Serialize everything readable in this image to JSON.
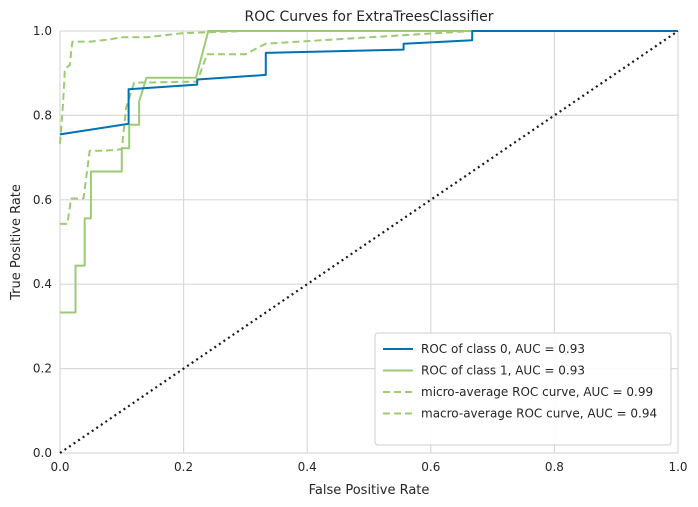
{
  "chart_data": {
    "type": "line",
    "title": "ROC Curves for ExtraTreesClassifier",
    "xlabel": "False Positive Rate",
    "ylabel": "True Positive Rate",
    "xlim": [
      0,
      1
    ],
    "ylim": [
      0,
      1
    ],
    "xticks": [
      "0.0",
      "0.2",
      "0.4",
      "0.6",
      "0.8",
      "1.0"
    ],
    "yticks": [
      "0.0",
      "0.2",
      "0.4",
      "0.6",
      "0.8",
      "1.0"
    ],
    "grid": true,
    "legend_position": "lower-right",
    "series": [
      {
        "name": "ROC of class 0, AUC = 0.93",
        "color": "#0072b2",
        "dash": "solid",
        "points": [
          [
            0,
            0.755
          ],
          [
            0.111,
            0.78
          ],
          [
            0.111,
            0.862
          ],
          [
            0.222,
            0.873
          ],
          [
            0.222,
            0.885
          ],
          [
            0.333,
            0.896
          ],
          [
            0.333,
            0.948
          ],
          [
            0.556,
            0.956
          ],
          [
            0.556,
            0.97
          ],
          [
            0.667,
            0.978
          ],
          [
            0.667,
            1.0
          ],
          [
            1.0,
            1.0
          ]
        ]
      },
      {
        "name": "ROC of class 1, AUC = 0.93",
        "color": "#9ccb74",
        "dash": "solid",
        "points": [
          [
            0,
            0.333
          ],
          [
            0.025,
            0.333
          ],
          [
            0.025,
            0.444
          ],
          [
            0.04,
            0.444
          ],
          [
            0.04,
            0.556
          ],
          [
            0.05,
            0.556
          ],
          [
            0.05,
            0.667
          ],
          [
            0.1,
            0.667
          ],
          [
            0.1,
            0.722
          ],
          [
            0.112,
            0.722
          ],
          [
            0.112,
            0.778
          ],
          [
            0.128,
            0.778
          ],
          [
            0.128,
            0.833
          ],
          [
            0.14,
            0.889
          ],
          [
            0.22,
            0.889
          ],
          [
            0.24,
            1.0
          ],
          [
            1.0,
            1.0
          ]
        ]
      },
      {
        "name": "micro-average ROC curve, AUC = 0.99",
        "color": "#9ccb74",
        "dash": "dashed",
        "points": [
          [
            0,
            0.733
          ],
          [
            0.005,
            0.83
          ],
          [
            0.008,
            0.91
          ],
          [
            0.016,
            0.92
          ],
          [
            0.018,
            0.95
          ],
          [
            0.02,
            0.975
          ],
          [
            0.05,
            0.975
          ],
          [
            0.08,
            0.98
          ],
          [
            0.1,
            0.985
          ],
          [
            0.14,
            0.985
          ],
          [
            0.2,
            0.995
          ],
          [
            0.3,
            1.0
          ],
          [
            1.0,
            1.0
          ]
        ]
      },
      {
        "name": "macro-average ROC curve, AUC = 0.94",
        "color": "#9ccb74",
        "dash": "dashed",
        "points": [
          [
            0,
            0.543
          ],
          [
            0.012,
            0.543
          ],
          [
            0.018,
            0.603
          ],
          [
            0.038,
            0.603
          ],
          [
            0.048,
            0.716
          ],
          [
            0.072,
            0.716
          ],
          [
            0.1,
            0.72
          ],
          [
            0.107,
            0.818
          ],
          [
            0.12,
            0.878
          ],
          [
            0.14,
            0.878
          ],
          [
            0.222,
            0.88
          ],
          [
            0.238,
            0.945
          ],
          [
            0.3,
            0.945
          ],
          [
            0.333,
            0.97
          ],
          [
            0.5,
            0.985
          ],
          [
            0.667,
            1.0
          ],
          [
            1.0,
            1.0
          ]
        ]
      }
    ],
    "reference_line": {
      "color": "#1a1a1a",
      "dash": "dotted",
      "points": [
        [
          0,
          0
        ],
        [
          1,
          1
        ]
      ]
    }
  }
}
